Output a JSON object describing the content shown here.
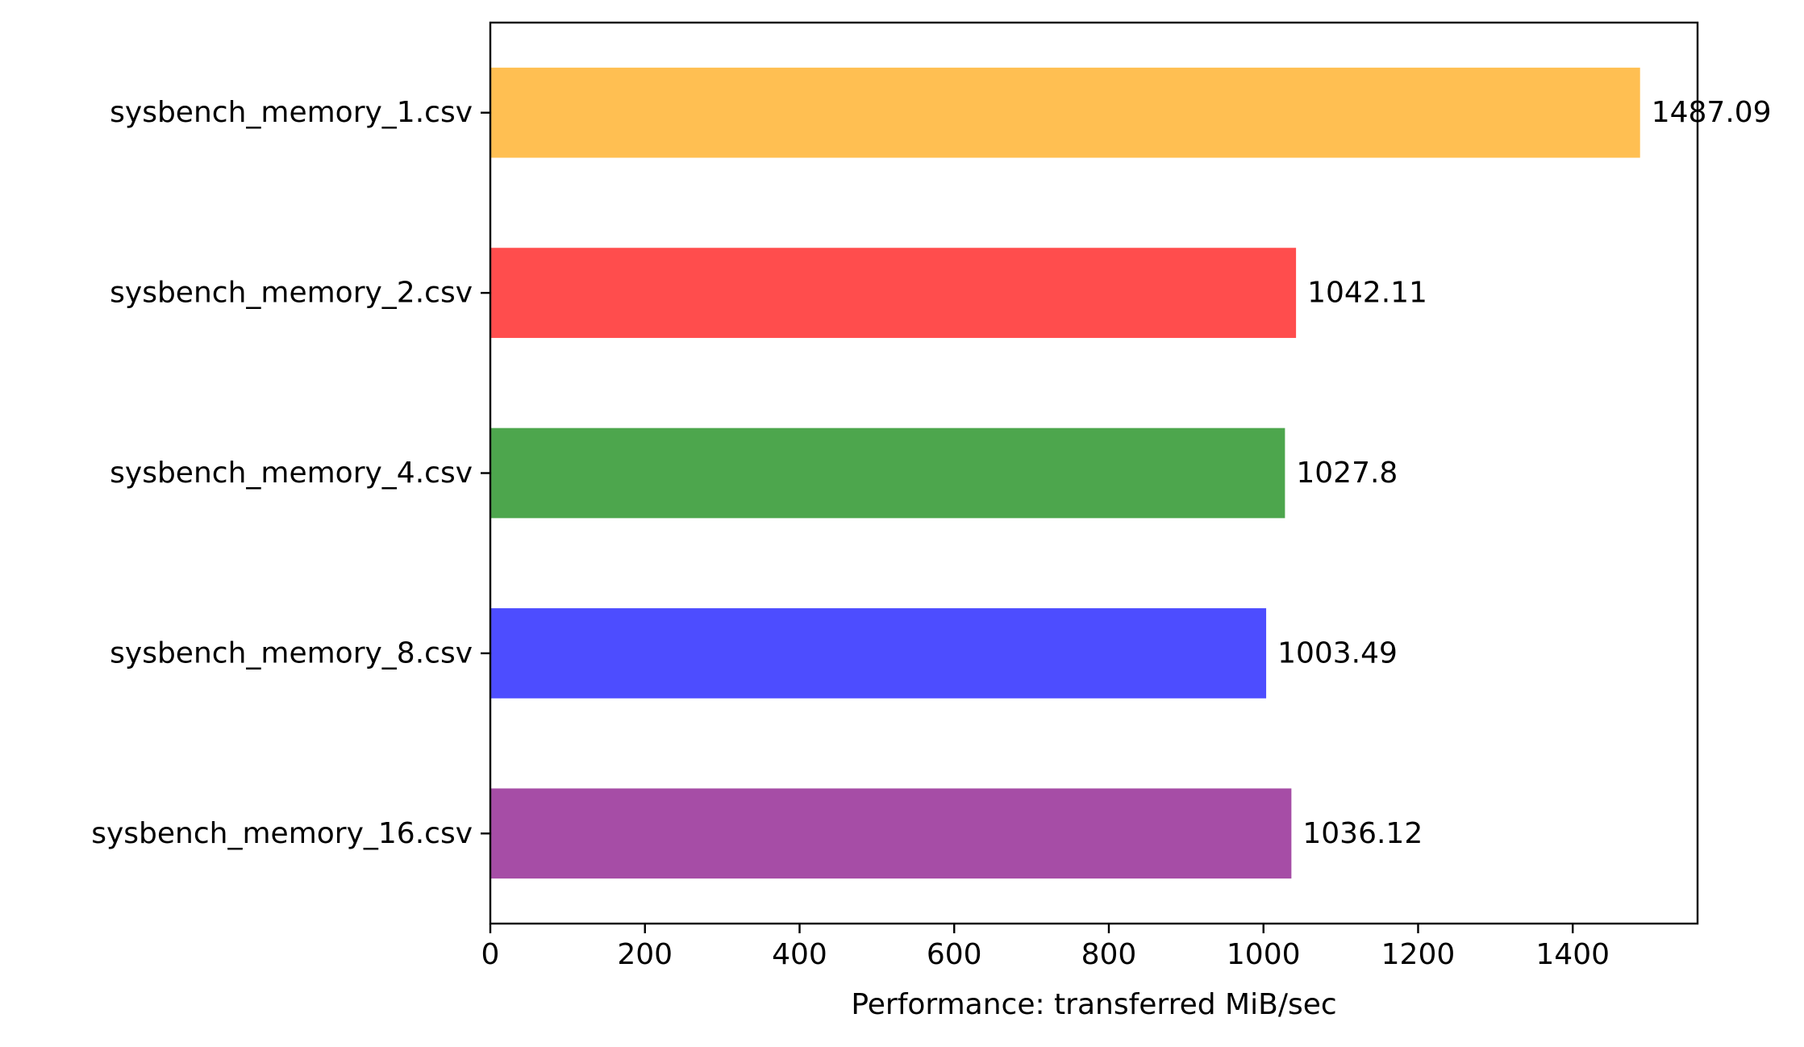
{
  "chart_data": {
    "type": "bar",
    "orientation": "horizontal",
    "categories": [
      "sysbench_memory_1.csv",
      "sysbench_memory_2.csv",
      "sysbench_memory_4.csv",
      "sysbench_memory_8.csv",
      "sysbench_memory_16.csv"
    ],
    "values": [
      1487.09,
      1042.11,
      1027.8,
      1003.49,
      1036.12
    ],
    "value_labels": [
      "1487.09",
      "1042.11",
      "1027.8",
      "1003.49",
      "1036.12"
    ],
    "colors": [
      "#ffbf52",
      "#ff4d4d",
      "#4da64d",
      "#4d4dff",
      "#a64da6"
    ],
    "title": "",
    "xlabel": "Performance: transferred MiB/sec",
    "ylabel": "",
    "xlim": [
      0,
      1561.44
    ],
    "xticks": [
      0,
      200,
      400,
      600,
      800,
      1000,
      1200,
      1400
    ],
    "xtick_labels": [
      "0",
      "200",
      "400",
      "600",
      "800",
      "1000",
      "1200",
      "1400"
    ],
    "grid": false,
    "legend": "none"
  }
}
